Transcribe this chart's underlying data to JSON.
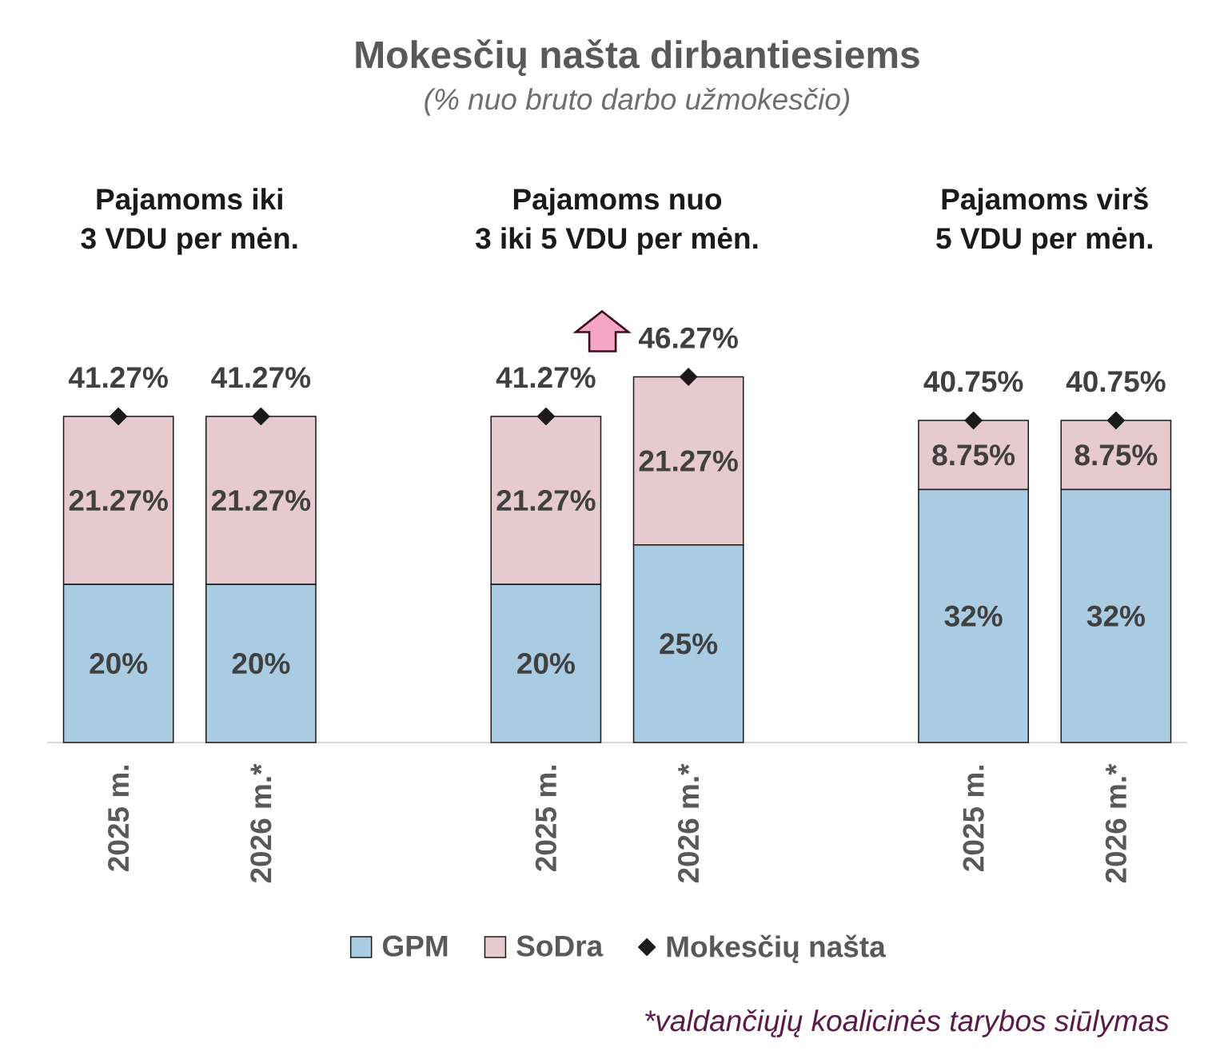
{
  "chart_data": {
    "type": "bar",
    "title": "Mokesčių našta dirbantiesiems",
    "subtitle": "(% nuo bruto darbo užmokesčio)",
    "categories": [
      "2025 m.",
      "2026 m.*",
      null,
      "2025 m.",
      "2026 m.*",
      null,
      "2025 m.",
      "2026 m.*"
    ],
    "stacked": true,
    "series": [
      {
        "name": "GPM",
        "color": "#a9cce3",
        "values": [
          20,
          20,
          null,
          20,
          25,
          null,
          32,
          32
        ],
        "value_labels": [
          "20%",
          "20%",
          null,
          "20%",
          "25%",
          null,
          "32%",
          "32%"
        ]
      },
      {
        "name": "SoDra",
        "color": "#e6cad0",
        "values": [
          21.27,
          21.27,
          null,
          21.27,
          21.27,
          null,
          8.75,
          8.75
        ],
        "value_labels": [
          "21.27%",
          "21.27%",
          null,
          "21.27%",
          "21.27%",
          null,
          "8.75%",
          "8.75%"
        ]
      },
      {
        "name": "Mokesčių našta",
        "type": "scatter",
        "color": "#1a1a1a",
        "marker": "diamond",
        "values": [
          41.27,
          41.27,
          null,
          41.27,
          46.27,
          null,
          40.75,
          40.75
        ],
        "value_labels": [
          "41.27%",
          "41.27%",
          null,
          "41.27%",
          "46.27%",
          null,
          "40.75%",
          "40.75%"
        ]
      }
    ],
    "legend": "bottom",
    "annotations": [
      "Pajamoms iki",
      "3 VDU per mėn.",
      "Pajamoms nuo",
      "3 iki 5 VDU per mėn.",
      "Pajamoms virš",
      "5 VDU per mėn.",
      "*valdančiųjų koalicinės tarybos siūlymas"
    ]
  }
}
